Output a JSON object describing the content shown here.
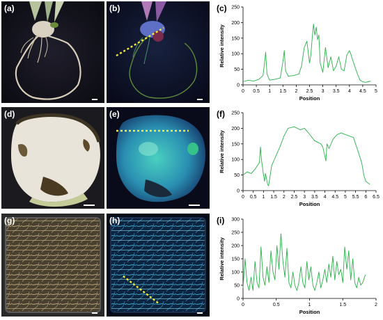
{
  "panels": {
    "a": {
      "label": "(a)"
    },
    "b": {
      "label": "(b)"
    },
    "c": {
      "label": "(c)"
    },
    "d": {
      "label": "(d)"
    },
    "e": {
      "label": "(e)"
    },
    "f": {
      "label": "(f)"
    },
    "g": {
      "label": "(g)"
    },
    "h": {
      "label": "(h)"
    },
    "i": {
      "label": "(i)"
    }
  },
  "colors": {
    "line": "#2ab24a",
    "dash": "#f2ee3a",
    "scale_bar": "#ffffff"
  },
  "chart_data": [
    {
      "id": "c",
      "type": "line",
      "xlabel": "Position",
      "ylabel": "Relative intensity",
      "xlim": [
        0,
        5
      ],
      "ylim": [
        0,
        250
      ],
      "xticks": [
        "0",
        "0.5",
        "1",
        "1.5",
        "2",
        "2.5",
        "3",
        "3.5",
        "4",
        "4.5",
        "5"
      ],
      "yticks": [
        "0",
        "50",
        "100",
        "150",
        "200",
        "250"
      ],
      "series": [
        {
          "x": [
            0,
            0.2,
            0.4,
            0.6,
            0.75,
            0.8,
            0.85,
            0.9,
            1.0,
            1.2,
            1.4,
            1.5,
            1.55,
            1.6,
            1.7,
            1.9,
            2.1,
            2.2,
            2.3,
            2.4,
            2.5,
            2.55,
            2.6,
            2.65,
            2.7,
            2.75,
            2.8,
            2.85,
            2.9,
            3.0,
            3.1,
            3.2,
            3.3,
            3.4,
            3.5,
            3.6,
            3.7,
            3.8,
            3.9,
            4.0,
            4.05,
            4.1,
            4.2,
            4.3,
            4.4,
            4.5,
            4.6,
            4.7,
            4.8
          ],
          "y": [
            10,
            15,
            12,
            18,
            30,
            65,
            105,
            35,
            15,
            18,
            22,
            75,
            110,
            45,
            28,
            30,
            35,
            60,
            120,
            140,
            70,
            95,
            150,
            195,
            160,
            185,
            145,
            160,
            70,
            40,
            120,
            55,
            90,
            45,
            60,
            90,
            50,
            45,
            95,
            110,
            100,
            85,
            60,
            35,
            15,
            10,
            8,
            10,
            12
          ]
        }
      ]
    },
    {
      "id": "f",
      "type": "line",
      "xlabel": "Position",
      "ylabel": "Relative intensity",
      "xlim": [
        0,
        6.5
      ],
      "ylim": [
        0,
        250
      ],
      "xticks": [
        "0",
        "0.5",
        "1",
        "1.5",
        "2",
        "2.5",
        "3",
        "3.5",
        "4",
        "4.5",
        "5",
        "5.5",
        "6",
        "6.5"
      ],
      "yticks": [
        "0",
        "50",
        "100",
        "150",
        "200",
        "250"
      ],
      "series": [
        {
          "x": [
            0,
            0.2,
            0.4,
            0.6,
            0.8,
            0.85,
            0.9,
            1.0,
            1.05,
            1.1,
            1.2,
            1.25,
            1.4,
            1.6,
            1.8,
            2.0,
            2.2,
            2.5,
            2.8,
            3.0,
            3.2,
            3.5,
            3.8,
            3.9,
            4.0,
            4.05,
            4.1,
            4.2,
            4.4,
            4.6,
            4.8,
            5.0,
            5.2,
            5.4,
            5.5,
            5.6,
            5.8,
            5.9,
            6.0,
            6.1,
            6.2
          ],
          "y": [
            50,
            60,
            55,
            70,
            90,
            140,
            100,
            50,
            30,
            55,
            20,
            15,
            80,
            110,
            140,
            175,
            200,
            205,
            195,
            200,
            185,
            160,
            150,
            140,
            110,
            95,
            150,
            135,
            165,
            180,
            185,
            180,
            175,
            170,
            150,
            130,
            90,
            50,
            30,
            25,
            20
          ]
        }
      ]
    },
    {
      "id": "i",
      "type": "line",
      "xlabel": "Position",
      "ylabel": "Relative intensity",
      "xlim": [
        0,
        2
      ],
      "ylim": [
        0,
        300
      ],
      "xticks": [
        "0",
        "0.5",
        "1",
        "1.5",
        "2"
      ],
      "yticks": [
        "0",
        "50",
        "100",
        "150",
        "200",
        "250",
        "300"
      ],
      "series": [
        {
          "x": [
            0,
            0.03,
            0.06,
            0.09,
            0.12,
            0.15,
            0.18,
            0.21,
            0.24,
            0.27,
            0.3,
            0.33,
            0.36,
            0.39,
            0.42,
            0.45,
            0.48,
            0.51,
            0.54,
            0.57,
            0.6,
            0.63,
            0.66,
            0.69,
            0.72,
            0.75,
            0.78,
            0.81,
            0.84,
            0.87,
            0.9,
            0.93,
            0.96,
            0.99,
            1.02,
            1.05,
            1.08,
            1.11,
            1.14,
            1.17,
            1.2,
            1.23,
            1.26,
            1.29,
            1.32,
            1.35,
            1.38,
            1.41,
            1.44,
            1.47,
            1.5,
            1.53,
            1.56,
            1.59,
            1.62,
            1.65,
            1.68,
            1.71,
            1.74,
            1.77,
            1.8,
            1.84
          ],
          "y": [
            40,
            150,
            60,
            30,
            80,
            30,
            140,
            60,
            40,
            195,
            80,
            50,
            120,
            60,
            180,
            100,
            70,
            200,
            110,
            245,
            140,
            80,
            190,
            60,
            40,
            100,
            50,
            30,
            60,
            120,
            60,
            40,
            140,
            70,
            120,
            50,
            30,
            60,
            100,
            40,
            70,
            110,
            60,
            130,
            80,
            160,
            70,
            140,
            90,
            110,
            60,
            195,
            110,
            180,
            70,
            150,
            60,
            40,
            80,
            50,
            60,
            90
          ]
        }
      ]
    }
  ]
}
